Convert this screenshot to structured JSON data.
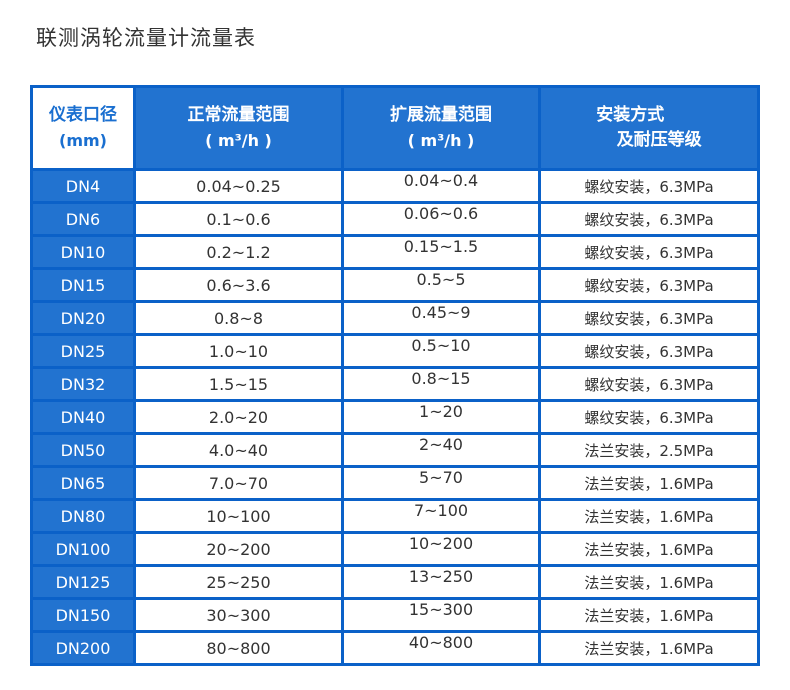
{
  "page": {
    "title": "联测涡轮流量计流量表"
  },
  "colors": {
    "grid_blue": "#0b61c8",
    "cell_blue": "#2273d0",
    "header_first_text": "#1a6fd0",
    "body_text": "#333333",
    "background": "#ffffff"
  },
  "table": {
    "headers": [
      {
        "line1": "仪表口径",
        "line2": "(mm)"
      },
      {
        "line1": "正常流量范围",
        "line2": "( m³/h )"
      },
      {
        "line1": "扩展流量范围",
        "line2": "( m³/h )"
      },
      {
        "line1": "安装方式",
        "line2": "及耐压等级"
      }
    ],
    "rows": [
      {
        "dn": "DN4",
        "normal": "0.04~0.25",
        "extended": "0.04~0.4",
        "install": "螺纹安装，6.3MPa"
      },
      {
        "dn": "DN6",
        "normal": "0.1~0.6",
        "extended": "0.06~0.6",
        "install": "螺纹安装，6.3MPa"
      },
      {
        "dn": "DN10",
        "normal": "0.2~1.2",
        "extended": "0.15~1.5",
        "install": "螺纹安装，6.3MPa"
      },
      {
        "dn": "DN15",
        "normal": "0.6~3.6",
        "extended": "0.5~5",
        "install": "螺纹安装，6.3MPa"
      },
      {
        "dn": "DN20",
        "normal": "0.8~8",
        "extended": "0.45~9",
        "install": "螺纹安装，6.3MPa"
      },
      {
        "dn": "DN25",
        "normal": "1.0~10",
        "extended": "0.5~10",
        "install": "螺纹安装，6.3MPa"
      },
      {
        "dn": "DN32",
        "normal": "1.5~15",
        "extended": "0.8~15",
        "install": "螺纹安装，6.3MPa"
      },
      {
        "dn": "DN40",
        "normal": "2.0~20",
        "extended": "1~20",
        "install": "螺纹安装，6.3MPa"
      },
      {
        "dn": "DN50",
        "normal": "4.0~40",
        "extended": "2~40",
        "install": "法兰安装，2.5MPa"
      },
      {
        "dn": "DN65",
        "normal": "7.0~70",
        "extended": "5~70",
        "install": "法兰安装，1.6MPa"
      },
      {
        "dn": "DN80",
        "normal": "10~100",
        "extended": "7~100",
        "install": "法兰安装，1.6MPa"
      },
      {
        "dn": "DN100",
        "normal": "20~200",
        "extended": "10~200",
        "install": "法兰安装，1.6MPa"
      },
      {
        "dn": "DN125",
        "normal": "25~250",
        "extended": "13~250",
        "install": "法兰安装，1.6MPa"
      },
      {
        "dn": "DN150",
        "normal": "30~300",
        "extended": "15~300",
        "install": "法兰安装，1.6MPa"
      },
      {
        "dn": "DN200",
        "normal": "80~800",
        "extended": "40~800",
        "install": "法兰安装，1.6MPa"
      }
    ]
  }
}
